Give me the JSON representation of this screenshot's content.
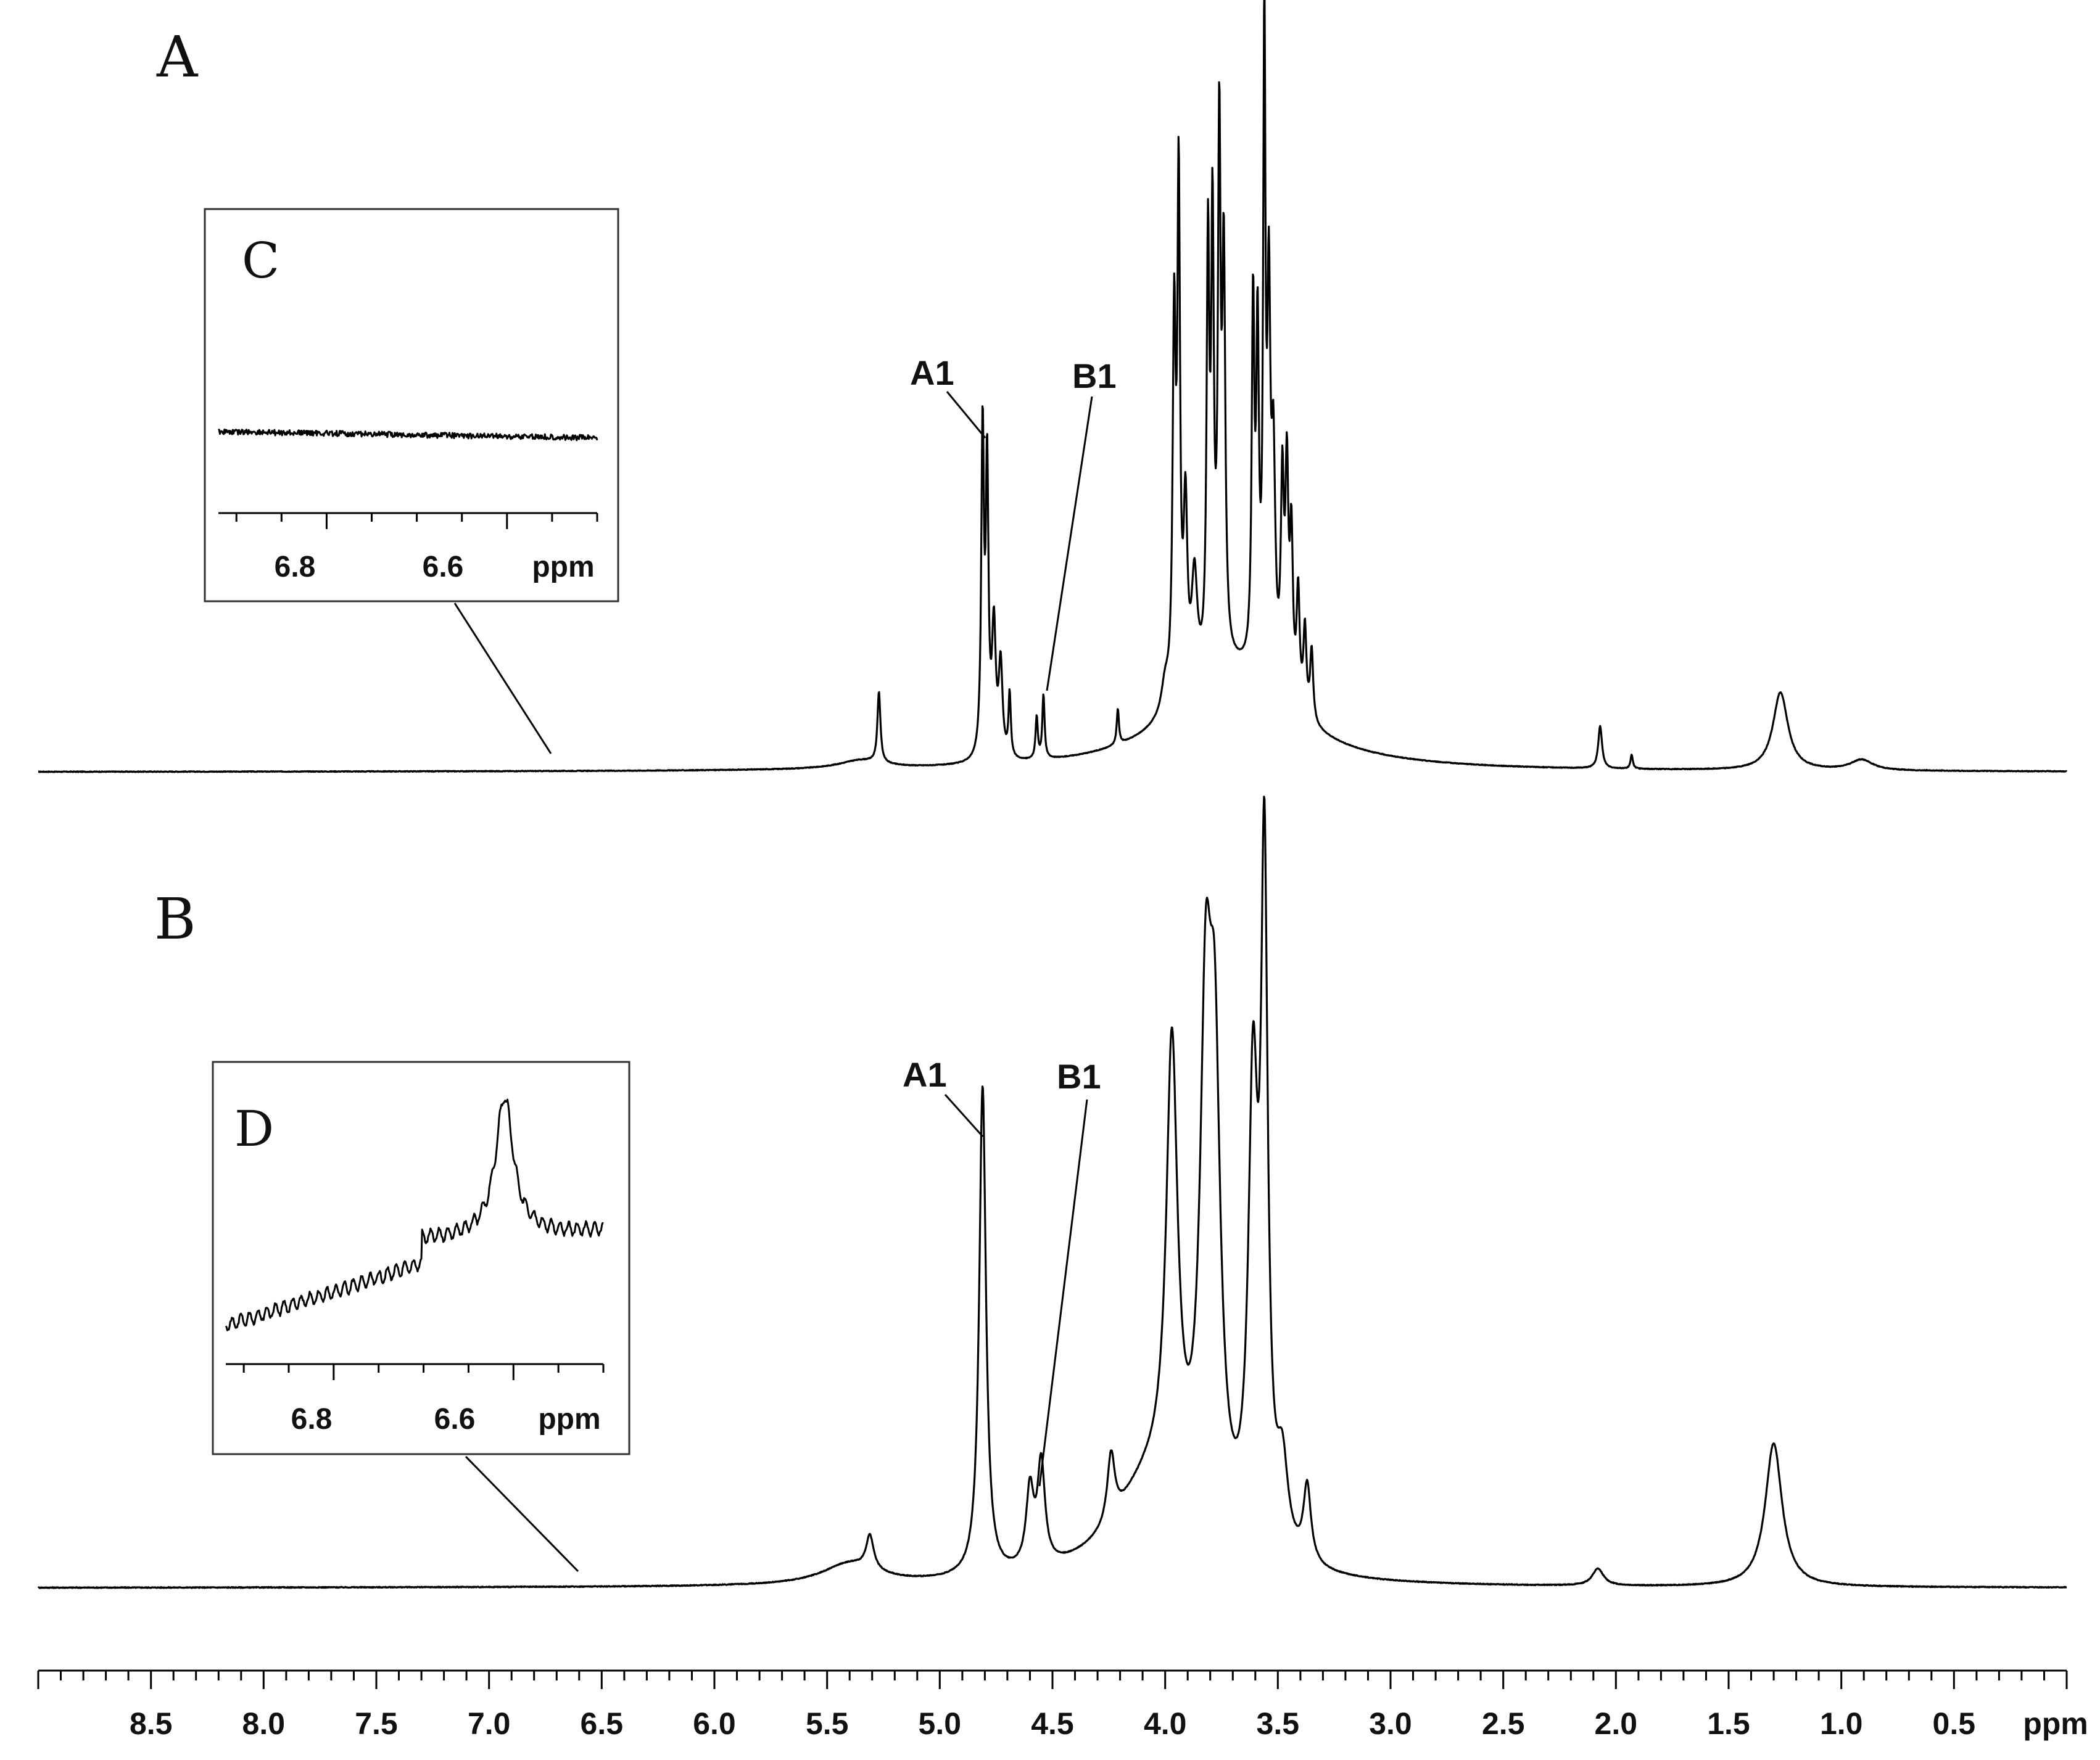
{
  "chart_data": {
    "type": "line",
    "title": "",
    "xlabel": "ppm",
    "ylabel": "",
    "xlim": [
      9.0,
      0.0
    ],
    "x_reversed": true,
    "grid": false,
    "x_ticks_labeled": [
      "8.5",
      "8.0",
      "7.5",
      "7.0",
      "6.5",
      "6.0",
      "5.5",
      "5.0",
      "4.5",
      "4.0",
      "3.5",
      "3.0",
      "2.5",
      "2.0",
      "1.5",
      "1.0",
      "0.5"
    ],
    "x_tick_values": [
      8.5,
      8.0,
      7.5,
      7.0,
      6.5,
      6.0,
      5.5,
      5.0,
      4.5,
      4.0,
      3.5,
      3.0,
      2.5,
      2.0,
      1.5,
      1.0,
      0.5
    ],
    "minor_tick_step": 0.1,
    "unit_label": "ppm",
    "panels": [
      {
        "letter": "A",
        "ylim": [
          0,
          1.0
        ],
        "peaks": [
          {
            "ppm": 5.27,
            "height": 0.1,
            "width": 0.008
          },
          {
            "ppm": 4.81,
            "height": 0.46,
            "width": 0.007
          },
          {
            "ppm": 4.79,
            "height": 0.4,
            "width": 0.007
          },
          {
            "ppm": 4.76,
            "height": 0.18,
            "width": 0.01
          },
          {
            "ppm": 4.73,
            "height": 0.13,
            "width": 0.01
          },
          {
            "ppm": 4.69,
            "height": 0.09,
            "width": 0.006
          },
          {
            "ppm": 4.57,
            "height": 0.06,
            "width": 0.006
          },
          {
            "ppm": 4.54,
            "height": 0.09,
            "width": 0.006
          },
          {
            "ppm": 4.21,
            "height": 0.05,
            "width": 0.006
          },
          {
            "ppm": 4.0,
            "height": 0.04,
            "width": 0.02
          },
          {
            "ppm": 3.96,
            "height": 0.52,
            "width": 0.008
          },
          {
            "ppm": 3.94,
            "height": 0.7,
            "width": 0.007
          },
          {
            "ppm": 3.91,
            "height": 0.25,
            "width": 0.01
          },
          {
            "ppm": 3.87,
            "height": 0.15,
            "width": 0.015
          },
          {
            "ppm": 3.81,
            "height": 0.58,
            "width": 0.007
          },
          {
            "ppm": 3.79,
            "height": 0.6,
            "width": 0.007
          },
          {
            "ppm": 3.76,
            "height": 0.72,
            "width": 0.007
          },
          {
            "ppm": 3.74,
            "height": 0.55,
            "width": 0.008
          },
          {
            "ppm": 3.61,
            "height": 0.5,
            "width": 0.007
          },
          {
            "ppm": 3.59,
            "height": 0.45,
            "width": 0.007
          },
          {
            "ppm": 3.56,
            "height": 0.88,
            "width": 0.006
          },
          {
            "ppm": 3.54,
            "height": 0.5,
            "width": 0.008
          },
          {
            "ppm": 3.52,
            "height": 0.3,
            "width": 0.01
          },
          {
            "ppm": 3.48,
            "height": 0.28,
            "width": 0.008
          },
          {
            "ppm": 3.46,
            "height": 0.3,
            "width": 0.008
          },
          {
            "ppm": 3.44,
            "height": 0.22,
            "width": 0.008
          },
          {
            "ppm": 3.41,
            "height": 0.16,
            "width": 0.008
          },
          {
            "ppm": 3.38,
            "height": 0.12,
            "width": 0.008
          },
          {
            "ppm": 3.35,
            "height": 0.1,
            "width": 0.008
          },
          {
            "ppm": 2.07,
            "height": 0.06,
            "width": 0.01
          },
          {
            "ppm": 1.93,
            "height": 0.02,
            "width": 0.006
          },
          {
            "ppm": 1.27,
            "height": 0.11,
            "width": 0.04
          },
          {
            "ppm": 0.91,
            "height": 0.015,
            "width": 0.06
          }
        ],
        "broad_features": [
          {
            "ppm": 3.7,
            "height": 0.14,
            "width": 0.3
          },
          {
            "ppm": 5.35,
            "height": 0.012,
            "width": 0.12
          }
        ],
        "annotations": [
          {
            "text": "A1",
            "target_ppm": 4.8
          },
          {
            "text": "B1",
            "target_ppm": 4.55
          }
        ],
        "inset": {
          "letter": "C",
          "xlim": [
            6.92,
            6.5
          ],
          "x_ticks_labeled": [
            "6.8",
            "6.6"
          ],
          "x_tick_values": [
            6.8,
            6.6
          ],
          "unit_label": "ppm",
          "description_values": {
            "baseline": 0.0
          },
          "leader_target_ppm": 6.68
        }
      },
      {
        "letter": "B",
        "ylim": [
          0,
          1.0
        ],
        "peaks": [
          {
            "ppm": 5.31,
            "height": 0.04,
            "width": 0.02
          },
          {
            "ppm": 4.81,
            "height": 0.58,
            "width": 0.018
          },
          {
            "ppm": 4.6,
            "height": 0.09,
            "width": 0.02
          },
          {
            "ppm": 4.55,
            "height": 0.12,
            "width": 0.02
          },
          {
            "ppm": 4.24,
            "height": 0.08,
            "width": 0.02
          },
          {
            "ppm": 3.97,
            "height": 0.52,
            "width": 0.03
          },
          {
            "ppm": 3.82,
            "height": 0.54,
            "width": 0.03
          },
          {
            "ppm": 3.78,
            "height": 0.48,
            "width": 0.03
          },
          {
            "ppm": 3.61,
            "height": 0.52,
            "width": 0.025
          },
          {
            "ppm": 3.56,
            "height": 0.78,
            "width": 0.018
          },
          {
            "ppm": 3.48,
            "height": 0.1,
            "width": 0.03
          },
          {
            "ppm": 3.37,
            "height": 0.09,
            "width": 0.02
          },
          {
            "ppm": 2.08,
            "height": 0.02,
            "width": 0.03
          },
          {
            "ppm": 1.3,
            "height": 0.17,
            "width": 0.045
          }
        ],
        "broad_features": [
          {
            "ppm": 4.05,
            "height": 0.12,
            "width": 0.22
          },
          {
            "ppm": 5.4,
            "height": 0.025,
            "width": 0.15
          }
        ],
        "annotations": [
          {
            "text": "A1",
            "target_ppm": 4.81
          },
          {
            "text": "B1",
            "target_ppm": 4.56
          }
        ],
        "inset": {
          "letter": "D",
          "xlim": [
            6.92,
            6.5
          ],
          "x_ticks_labeled": [
            "6.8",
            "6.6"
          ],
          "x_tick_values": [
            6.8,
            6.6
          ],
          "unit_label": "ppm",
          "peak": {
            "ppm": 6.61,
            "height": 1.0
          },
          "leader_target_ppm": 6.62
        }
      }
    ]
  }
}
